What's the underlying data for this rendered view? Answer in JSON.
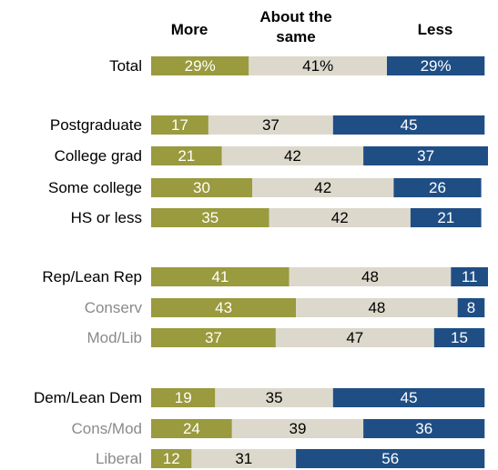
{
  "chart_data": {
    "type": "bar",
    "orientation": "horizontal",
    "stacked": true,
    "column_headers": [
      {
        "key": "more",
        "lines": [
          "More"
        ]
      },
      {
        "key": "same",
        "lines": [
          "About the",
          "same"
        ]
      },
      {
        "key": "less",
        "lines": [
          "Less"
        ]
      }
    ],
    "colors": {
      "more": "#9a9a3e",
      "same": "#dcd9cc",
      "less": "#1f4e85",
      "label_on_dark": "#ffffff",
      "label_on_light": "#000000",
      "row_label_main": "#000000",
      "row_label_sub": "#8a8a8a"
    },
    "rows": [
      {
        "label": "Total",
        "style": "main",
        "more": 29,
        "same": 41,
        "less": 29,
        "labels": [
          "29%",
          "41%",
          "29%"
        ]
      },
      {
        "label": "Postgraduate",
        "style": "main",
        "more": 17,
        "same": 37,
        "less": 45,
        "labels": [
          "17",
          "37",
          "45"
        ]
      },
      {
        "label": "College grad",
        "style": "main",
        "more": 21,
        "same": 42,
        "less": 37,
        "labels": [
          "21",
          "42",
          "37"
        ]
      },
      {
        "label": "Some college",
        "style": "main",
        "more": 30,
        "same": 42,
        "less": 26,
        "labels": [
          "30",
          "42",
          "26"
        ]
      },
      {
        "label": "HS or less",
        "style": "main",
        "more": 35,
        "same": 42,
        "less": 21,
        "labels": [
          "35",
          "42",
          "21"
        ]
      },
      {
        "label": "Rep/Lean Rep",
        "style": "main",
        "more": 41,
        "same": 48,
        "less": 11,
        "labels": [
          "41",
          "48",
          "11"
        ]
      },
      {
        "label": "Conserv",
        "style": "sub",
        "more": 43,
        "same": 48,
        "less": 8,
        "labels": [
          "43",
          "48",
          "8"
        ]
      },
      {
        "label": "Mod/Lib",
        "style": "sub",
        "more": 37,
        "same": 47,
        "less": 15,
        "labels": [
          "37",
          "47",
          "15"
        ]
      },
      {
        "label": "Dem/Lean Dem",
        "style": "main",
        "more": 19,
        "same": 35,
        "less": 45,
        "labels": [
          "19",
          "35",
          "45"
        ]
      },
      {
        "label": "Cons/Mod",
        "style": "sub",
        "more": 24,
        "same": 39,
        "less": 36,
        "labels": [
          "24",
          "39",
          "36"
        ]
      },
      {
        "label": "Liberal",
        "style": "sub",
        "more": 12,
        "same": 31,
        "less": 56,
        "labels": [
          "12",
          "31",
          "56"
        ]
      }
    ]
  }
}
